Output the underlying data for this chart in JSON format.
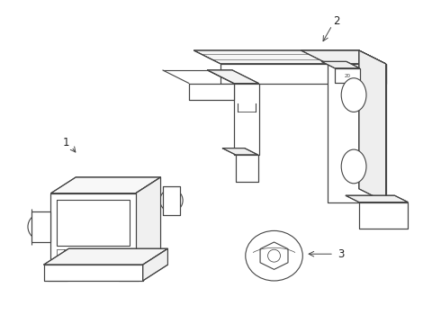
{
  "background_color": "#ffffff",
  "lc": "#444444",
  "lw": 0.8,
  "figsize": [
    4.9,
    3.6
  ],
  "dpi": 100,
  "label_color": "#222222",
  "label_fontsize": 8.5
}
